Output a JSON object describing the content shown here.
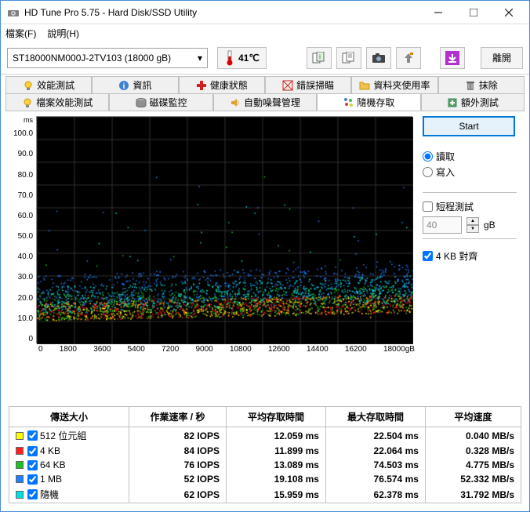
{
  "window": {
    "title": "HD Tune Pro 5.75 - Hard Disk/SSD Utility"
  },
  "menu": {
    "file": "檔案(F)",
    "help": "說明(H)"
  },
  "toolbar": {
    "drive": "ST18000NM000J-2TV103 (18000 gB)",
    "temp": "41℃",
    "exit": "離開"
  },
  "tabs_row1": [
    {
      "label": "效能測試",
      "icon": "bulb"
    },
    {
      "label": "資訊",
      "icon": "info"
    },
    {
      "label": "健康狀態",
      "icon": "heart"
    },
    {
      "label": "錯誤掃瞄",
      "icon": "scan"
    },
    {
      "label": "資料夾使用率",
      "icon": "folder"
    },
    {
      "label": "抹除",
      "icon": "erase"
    }
  ],
  "tabs_row2": [
    {
      "label": "檔案效能測試",
      "icon": "bulb"
    },
    {
      "label": "磁碟監控",
      "icon": "disk"
    },
    {
      "label": "自動噪聲管理",
      "icon": "speaker"
    },
    {
      "label": "隨機存取",
      "icon": "random",
      "active": true
    },
    {
      "label": "額外測試",
      "icon": "extra"
    }
  ],
  "chart": {
    "y_unit": "ms",
    "y_ticks": [
      "100.0",
      "90.0",
      "80.0",
      "70.0",
      "60.0",
      "50.0",
      "40.0",
      "30.0",
      "20.0",
      "10.0",
      "0"
    ],
    "x_ticks": [
      "0",
      "1800",
      "3600",
      "5400",
      "7200",
      "9000",
      "10800",
      "12600",
      "14400",
      "16200",
      "18000gB"
    ],
    "xmax": 18000,
    "ymax": 100,
    "bg": "#000000",
    "grid": "#303030",
    "series_colors": {
      "512": "#ffff00",
      "4k": "#ff2020",
      "64k": "#20c020",
      "1m": "#2080ff",
      "rand": "#00e0e0"
    }
  },
  "panel": {
    "start": "Start",
    "read": "讀取",
    "write": "寫入",
    "short_test": "短程測試",
    "gb_value": "40",
    "gb_unit": "gB",
    "align_4k": "4 KB 對齊"
  },
  "results": {
    "headers": [
      "傳送大小",
      "作業速率 / 秒",
      "平均存取時間",
      "最大存取時間",
      "平均速度"
    ],
    "rows": [
      {
        "color": "#ffff00",
        "label": "512 位元組",
        "iops": "82 IOPS",
        "avg": "12.059 ms",
        "max": "22.504 ms",
        "speed": "0.040 MB/s"
      },
      {
        "color": "#ff2020",
        "label": "4 KB",
        "iops": "84 IOPS",
        "avg": "11.899 ms",
        "max": "22.064 ms",
        "speed": "0.328 MB/s"
      },
      {
        "color": "#20c020",
        "label": "64 KB",
        "iops": "76 IOPS",
        "avg": "13.089 ms",
        "max": "74.503 ms",
        "speed": "4.775 MB/s"
      },
      {
        "color": "#2080ff",
        "label": "1 MB",
        "iops": "52 IOPS",
        "avg": "19.108 ms",
        "max": "76.574 ms",
        "speed": "52.332 MB/s"
      },
      {
        "color": "#00e0e0",
        "label": "隨機",
        "iops": "62 IOPS",
        "avg": "15.959 ms",
        "max": "62.378 ms",
        "speed": "31.792 MB/s"
      }
    ]
  }
}
